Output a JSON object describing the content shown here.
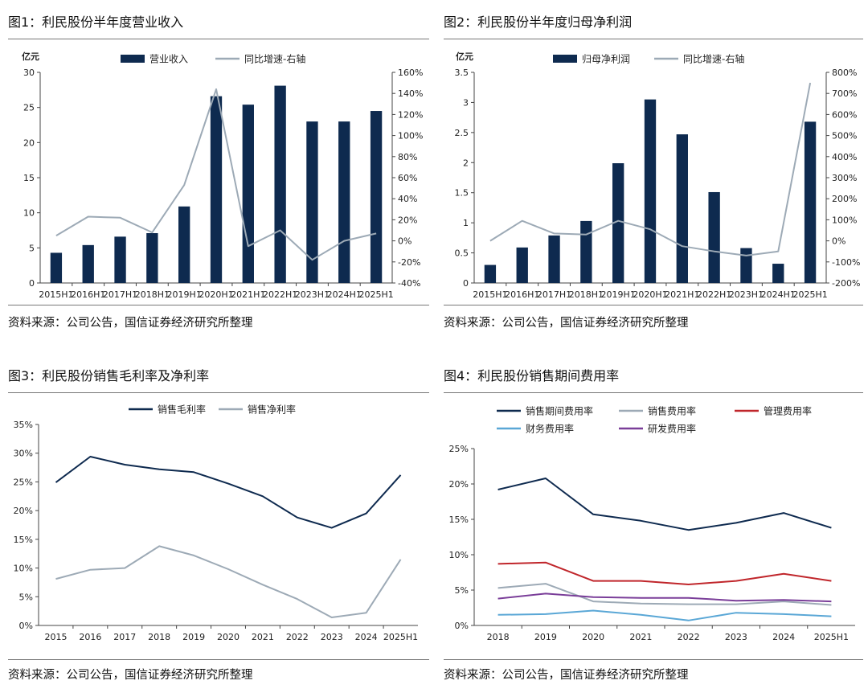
{
  "panels": [
    {
      "title": "图1：利民股份半年度营业收入",
      "source": "资料来源：公司公告，国信证券经济研究所整理"
    },
    {
      "title": "图2：利民股份半年度归母净利润",
      "source": "资料来源：公司公告，国信证券经济研究所整理"
    },
    {
      "title": "图3：利民股份销售毛利率及净利率",
      "source": "资料来源：公司公告，国信证券经济研究所整理"
    },
    {
      "title": "图4：利民股份销售期间费用率",
      "source": "资料来源：公司公告，国信证券经济研究所整理"
    }
  ],
  "colors": {
    "navy": "#0e2a4f",
    "grey": "#9daab6",
    "red": "#c0262b",
    "blue": "#5aa7d6",
    "purple": "#7a3e99"
  },
  "chart_data": [
    {
      "type": "bar",
      "unit_label": "亿元",
      "categories": [
        "2015H1",
        "2016H1",
        "2017H1",
        "2018H1",
        "2019H1",
        "2020H1",
        "2021H1",
        "2022H1",
        "2023H1",
        "2024H1",
        "2025H1"
      ],
      "series": [
        {
          "name": "营业收入",
          "type": "bar",
          "axis": "left",
          "color": "#0e2a4f",
          "values": [
            4.3,
            5.4,
            6.6,
            7.1,
            10.9,
            26.6,
            25.4,
            28.1,
            23.0,
            23.0,
            24.5
          ]
        },
        {
          "name": "同比增速-右轴",
          "type": "line",
          "axis": "right",
          "color": "#9daab6",
          "values": [
            5,
            23,
            22,
            8,
            53,
            144,
            -5,
            10,
            -18,
            0,
            7
          ]
        }
      ],
      "ylim": [
        0,
        30
      ],
      "yticks": [
        0,
        5,
        10,
        15,
        20,
        25,
        30
      ],
      "y2lim": [
        -40,
        160
      ],
      "y2ticks": [
        -40,
        -20,
        0,
        20,
        40,
        60,
        80,
        100,
        120,
        140,
        160
      ],
      "y2_tick_suffix": "%",
      "legend": "top"
    },
    {
      "type": "bar",
      "unit_label": "亿元",
      "categories": [
        "2015H1",
        "2016H1",
        "2017H1",
        "2018H1",
        "2019H1",
        "2020H1",
        "2021H1",
        "2022H1",
        "2023H1",
        "2024H1",
        "2025H1"
      ],
      "series": [
        {
          "name": "归母净利润",
          "type": "bar",
          "axis": "left",
          "color": "#0e2a4f",
          "values": [
            0.3,
            0.59,
            0.79,
            1.03,
            1.99,
            3.05,
            2.47,
            1.51,
            0.58,
            0.32,
            2.68
          ]
        },
        {
          "name": "同比增速-右轴",
          "type": "line",
          "axis": "right",
          "color": "#9daab6",
          "values": [
            0,
            95,
            35,
            30,
            95,
            55,
            -25,
            -50,
            -70,
            -50,
            750
          ]
        }
      ],
      "ylim": [
        0,
        3.5
      ],
      "yticks": [
        0,
        0.5,
        1,
        1.5,
        2,
        2.5,
        3,
        3.5
      ],
      "y2lim": [
        -200,
        800
      ],
      "y2ticks": [
        -200,
        -100,
        0,
        100,
        200,
        300,
        400,
        500,
        600,
        700,
        800
      ],
      "y2_tick_suffix": "%",
      "legend": "top"
    },
    {
      "type": "line",
      "categories": [
        "2015",
        "2016",
        "2017",
        "2018",
        "2019",
        "2020",
        "2021",
        "2022",
        "2023",
        "2024",
        "2025H1"
      ],
      "series": [
        {
          "name": "销售毛利率",
          "color": "#0e2a4f",
          "values": [
            24.9,
            29.4,
            28.0,
            27.2,
            26.7,
            24.7,
            22.5,
            18.8,
            17.0,
            19.5,
            26.2
          ]
        },
        {
          "name": "销售净利率",
          "color": "#9daab6",
          "values": [
            8.1,
            9.7,
            10.0,
            13.8,
            12.2,
            9.8,
            7.1,
            4.6,
            1.4,
            2.2,
            11.5
          ]
        }
      ],
      "ylim": [
        0,
        35
      ],
      "yticks": [
        0,
        5,
        10,
        15,
        20,
        25,
        30,
        35
      ],
      "y_tick_suffix": "%",
      "legend": "top"
    },
    {
      "type": "line",
      "categories": [
        "2018",
        "2019",
        "2020",
        "2021",
        "2022",
        "2023",
        "2024",
        "2025H1"
      ],
      "series": [
        {
          "name": "销售期间费用率",
          "color": "#0e2a4f",
          "values": [
            19.2,
            20.8,
            15.7,
            14.8,
            13.5,
            14.5,
            15.9,
            13.8
          ]
        },
        {
          "name": "销售费用率",
          "color": "#9daab6",
          "values": [
            5.3,
            5.9,
            3.4,
            3.1,
            3.0,
            3.0,
            3.4,
            2.9
          ]
        },
        {
          "name": "管理费用率",
          "color": "#c0262b",
          "values": [
            8.7,
            8.9,
            6.3,
            6.3,
            5.8,
            6.3,
            7.3,
            6.3
          ]
        },
        {
          "name": "财务费用率",
          "color": "#5aa7d6",
          "values": [
            1.5,
            1.6,
            2.1,
            1.5,
            0.7,
            1.8,
            1.6,
            1.3
          ]
        },
        {
          "name": "研发费用率",
          "color": "#7a3e99",
          "values": [
            3.8,
            4.5,
            4.0,
            3.9,
            3.9,
            3.5,
            3.6,
            3.4
          ]
        }
      ],
      "ylim": [
        0,
        25
      ],
      "yticks": [
        0,
        5,
        10,
        15,
        20,
        25
      ],
      "y_tick_suffix": "%",
      "legend": "top"
    }
  ]
}
